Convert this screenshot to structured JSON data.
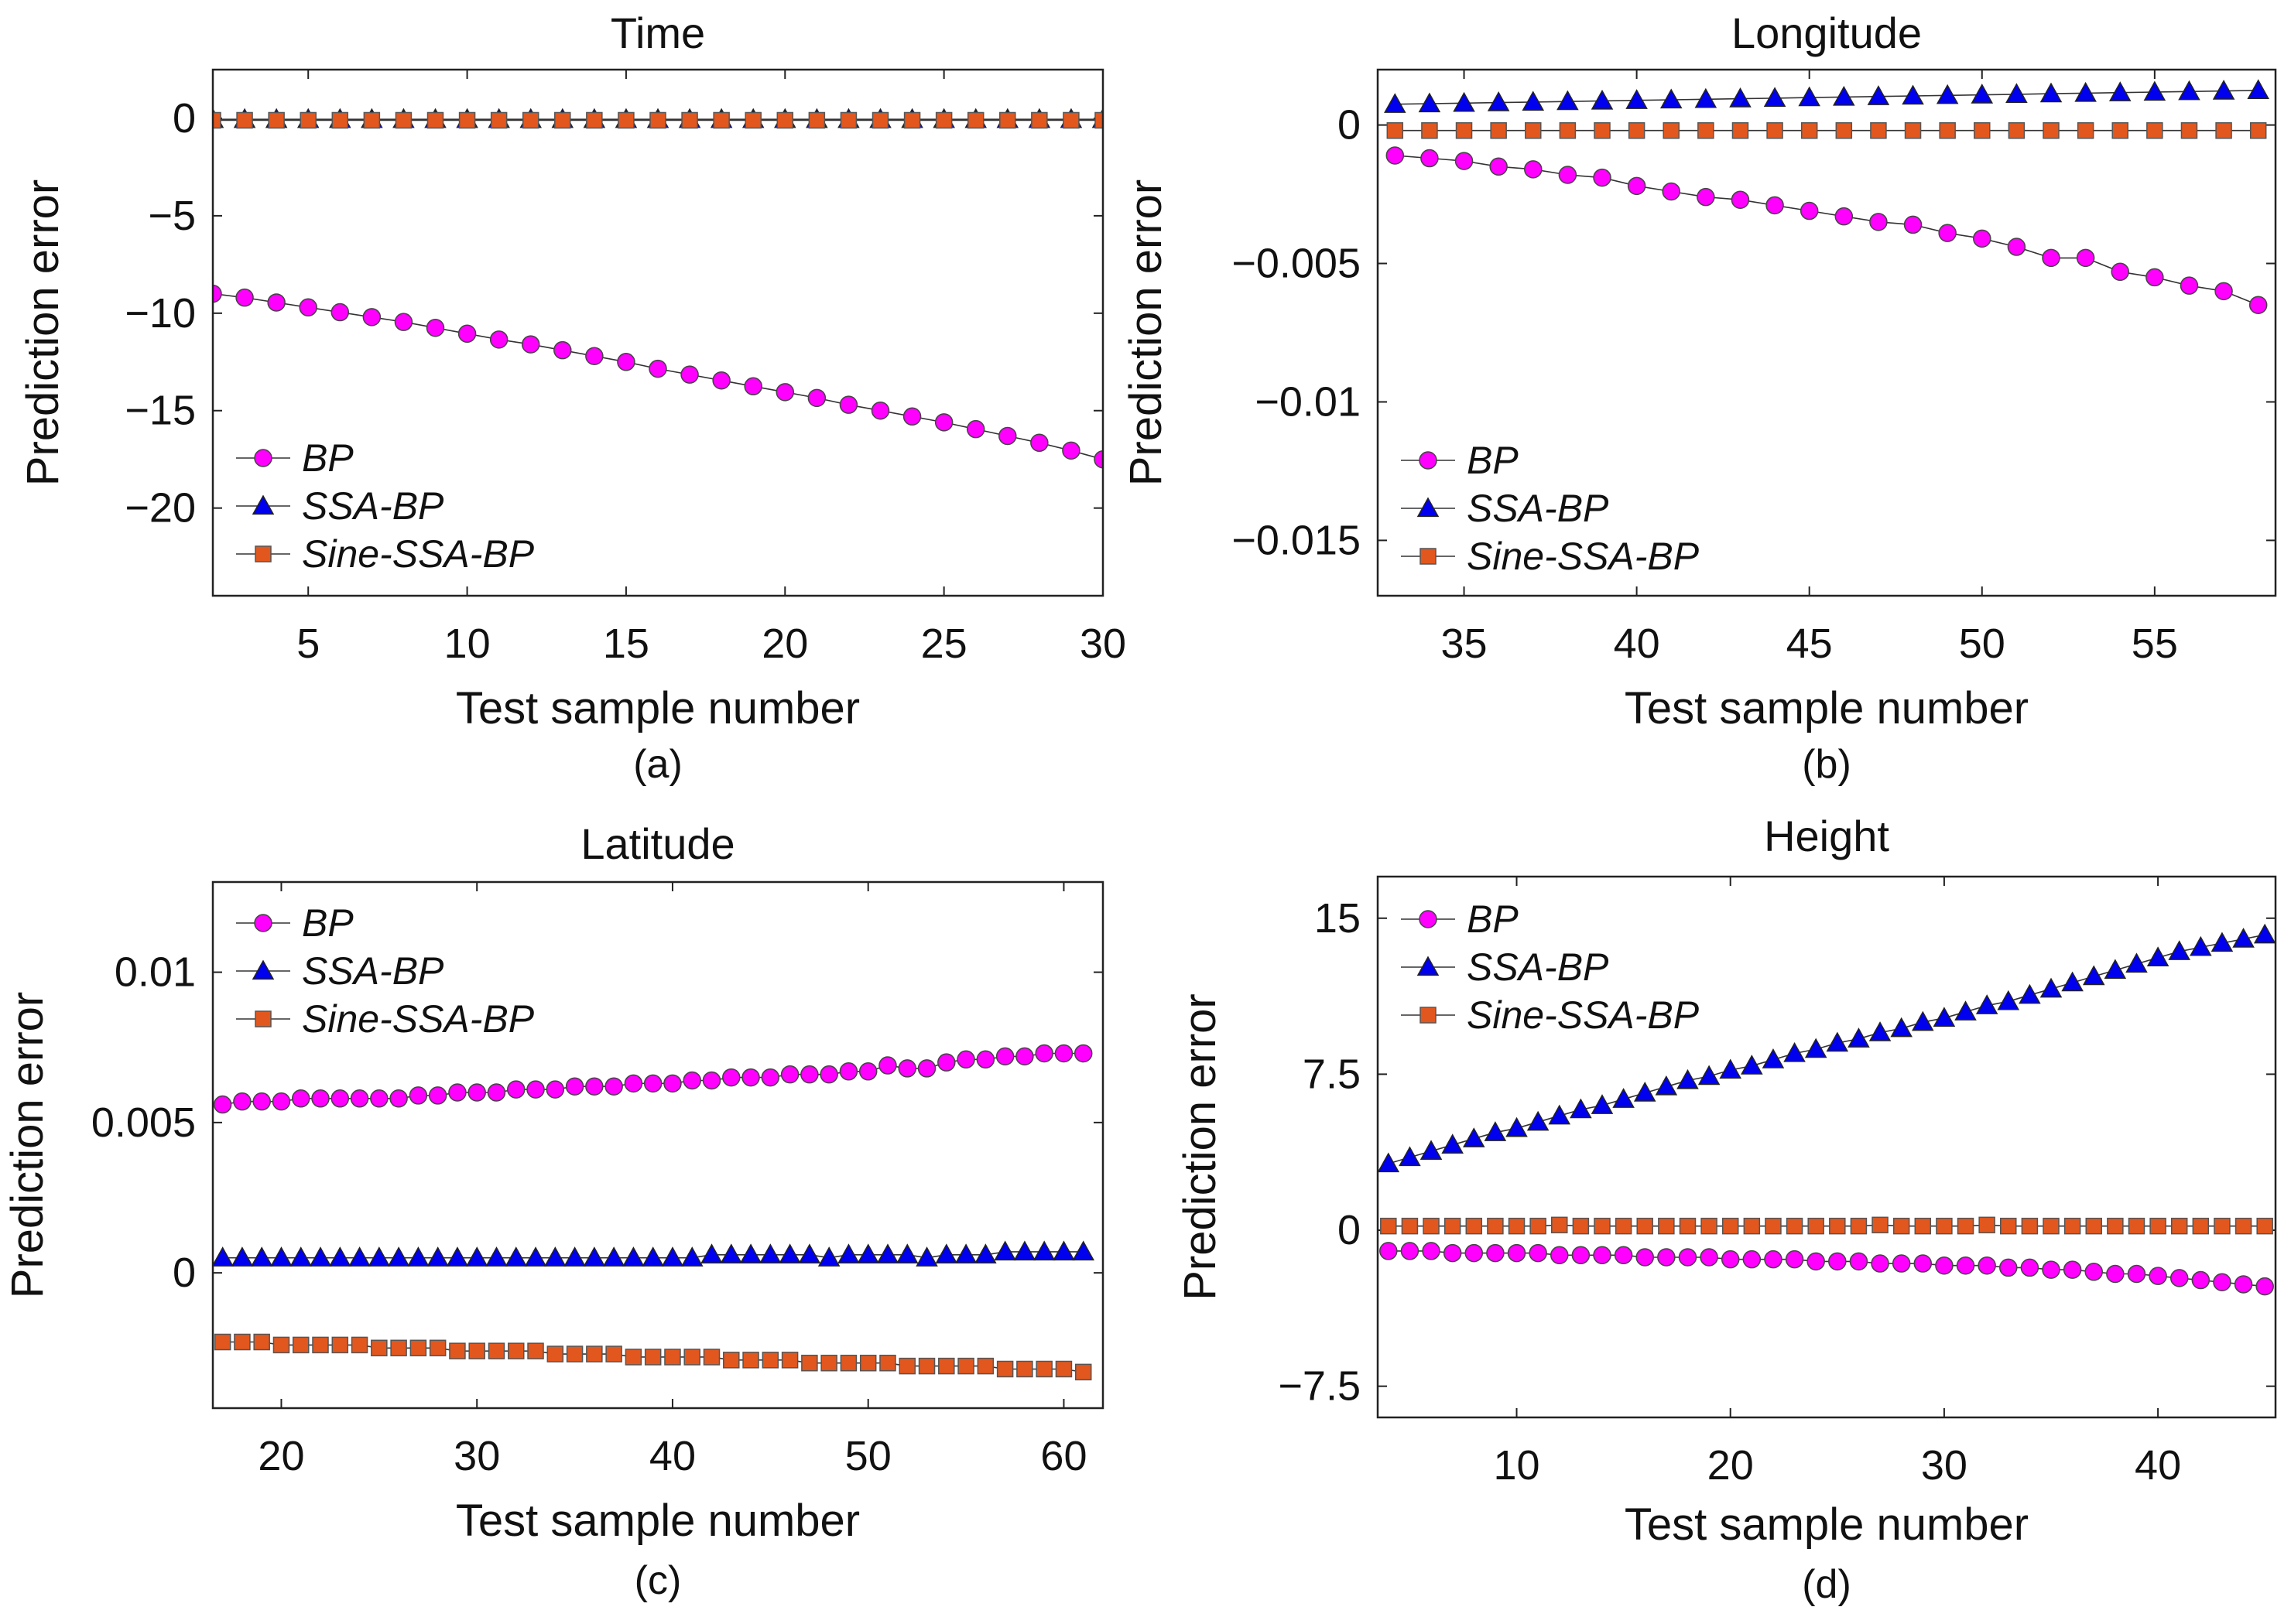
{
  "figure": {
    "panels": [
      {
        "id": "a",
        "caption": "(a)",
        "chart_data": {
          "type": "line",
          "title": "Time",
          "xlabel": "Test sample number",
          "ylabel": "Prediction error",
          "xlim": [
            2,
            30
          ],
          "ylim": [
            -24.5,
            2.5
          ],
          "xticks": [
            5,
            10,
            15,
            20,
            25,
            30
          ],
          "xtick_labels": [
            "5",
            "10",
            "15",
            "20",
            "25",
            "30"
          ],
          "yticks": [
            0,
            -5,
            -10,
            -15,
            -20
          ],
          "ytick_labels": [
            "0",
            "−5",
            "−10",
            "−15",
            "−20"
          ],
          "legend_position": "bottom-left",
          "x": [
            2,
            3,
            4,
            5,
            6,
            7,
            8,
            9,
            10,
            11,
            12,
            13,
            14,
            15,
            16,
            17,
            18,
            19,
            20,
            21,
            22,
            23,
            24,
            25,
            26,
            27,
            28,
            29,
            30
          ],
          "series": [
            {
              "name": "BP",
              "marker": "circle",
              "color": "#ff00ff",
              "values": [
                -9.0,
                -9.2,
                -9.45,
                -9.7,
                -9.95,
                -10.2,
                -10.45,
                -10.75,
                -11.05,
                -11.35,
                -11.6,
                -11.9,
                -12.2,
                -12.5,
                -12.85,
                -13.15,
                -13.45,
                -13.75,
                -14.05,
                -14.35,
                -14.7,
                -15.0,
                -15.3,
                -15.6,
                -15.95,
                -16.3,
                -16.65,
                -17.05,
                -17.5
              ]
            },
            {
              "name": "SSA-BP",
              "marker": "triangle",
              "color": "#0000ee",
              "values": [
                -0.05,
                -0.05,
                -0.05,
                -0.05,
                -0.05,
                -0.05,
                -0.05,
                -0.05,
                -0.05,
                -0.05,
                -0.05,
                -0.05,
                -0.05,
                -0.05,
                -0.05,
                -0.05,
                -0.05,
                -0.05,
                -0.05,
                -0.05,
                -0.05,
                -0.05,
                -0.05,
                -0.05,
                -0.05,
                -0.05,
                -0.05,
                -0.05,
                -0.05
              ]
            },
            {
              "name": "Sine-SSA-BP",
              "marker": "square",
              "color": "#e2571e",
              "values": [
                -0.1,
                -0.1,
                -0.1,
                -0.1,
                -0.1,
                -0.1,
                -0.1,
                -0.1,
                -0.1,
                -0.1,
                -0.1,
                -0.1,
                -0.1,
                -0.1,
                -0.1,
                -0.1,
                -0.1,
                -0.1,
                -0.1,
                -0.1,
                -0.1,
                -0.1,
                -0.1,
                -0.1,
                -0.1,
                -0.1,
                -0.1,
                -0.1,
                -0.1
              ]
            }
          ]
        }
      },
      {
        "id": "b",
        "caption": "(b)",
        "chart_data": {
          "type": "line",
          "title": "Longitude",
          "xlabel": "Test sample number",
          "ylabel": "Prediction error",
          "xlim": [
            32.5,
            58.5
          ],
          "ylim": [
            -0.017,
            0.002
          ],
          "xticks": [
            35,
            40,
            45,
            50,
            55
          ],
          "xtick_labels": [
            "35",
            "40",
            "45",
            "50",
            "55"
          ],
          "yticks": [
            0,
            -0.005,
            -0.01,
            -0.015
          ],
          "ytick_labels": [
            "0",
            "−0.005",
            "−0.01",
            "−0.015"
          ],
          "legend_position": "bottom-left",
          "x": [
            33,
            34,
            35,
            36,
            37,
            38,
            39,
            40,
            41,
            42,
            43,
            44,
            45,
            46,
            47,
            48,
            49,
            50,
            51,
            52,
            53,
            54,
            55,
            56,
            57,
            58
          ],
          "series": [
            {
              "name": "BP",
              "marker": "circle",
              "color": "#ff00ff",
              "values": [
                -0.0011,
                -0.0012,
                -0.0013,
                -0.0015,
                -0.0016,
                -0.0018,
                -0.0019,
                -0.0022,
                -0.0024,
                -0.0026,
                -0.0027,
                -0.0029,
                -0.0031,
                -0.0033,
                -0.0035,
                -0.0036,
                -0.0039,
                -0.0041,
                -0.0044,
                -0.0048,
                -0.0048,
                -0.0053,
                -0.0055,
                -0.0058,
                -0.006,
                -0.0065
              ]
            },
            {
              "name": "SSA-BP",
              "marker": "triangle",
              "color": "#0000ee",
              "values": [
                0.00075,
                0.00077,
                0.00079,
                0.00081,
                0.00083,
                0.00085,
                0.00087,
                0.00089,
                0.00091,
                0.00093,
                0.00095,
                0.00097,
                0.00099,
                0.00101,
                0.00103,
                0.00105,
                0.00107,
                0.00109,
                0.00111,
                0.00113,
                0.00115,
                0.00117,
                0.00119,
                0.00121,
                0.00123,
                0.00125
              ]
            },
            {
              "name": "Sine-SSA-BP",
              "marker": "square",
              "color": "#e2571e",
              "values": [
                -0.0002,
                -0.0002,
                -0.0002,
                -0.0002,
                -0.0002,
                -0.0002,
                -0.0002,
                -0.0002,
                -0.0002,
                -0.0002,
                -0.0002,
                -0.0002,
                -0.0002,
                -0.0002,
                -0.0002,
                -0.0002,
                -0.0002,
                -0.0002,
                -0.0002,
                -0.0002,
                -0.0002,
                -0.0002,
                -0.0002,
                -0.0002,
                -0.0002,
                -0.0002
              ]
            }
          ]
        }
      },
      {
        "id": "c",
        "caption": "(c)",
        "chart_data": {
          "type": "line",
          "title": "Latitude",
          "xlabel": "Test sample number",
          "ylabel": "Prediction error",
          "xlim": [
            16.5,
            62
          ],
          "ylim": [
            -0.0045,
            0.013
          ],
          "xticks": [
            20,
            30,
            40,
            50,
            60
          ],
          "xtick_labels": [
            "20",
            "30",
            "40",
            "50",
            "60"
          ],
          "yticks": [
            0.01,
            0.005,
            0
          ],
          "ytick_labels": [
            "0.01",
            "0.005",
            "0"
          ],
          "legend_position": "top-left",
          "x": [
            17,
            18,
            19,
            20,
            21,
            22,
            23,
            24,
            25,
            26,
            27,
            28,
            29,
            30,
            31,
            32,
            33,
            34,
            35,
            36,
            37,
            38,
            39,
            40,
            41,
            42,
            43,
            44,
            45,
            46,
            47,
            48,
            49,
            50,
            51,
            52,
            53,
            54,
            55,
            56,
            57,
            58,
            59,
            60,
            61
          ],
          "series": [
            {
              "name": "BP",
              "marker": "circle",
              "color": "#ff00ff",
              "values": [
                0.0056,
                0.0057,
                0.0057,
                0.0057,
                0.0058,
                0.0058,
                0.0058,
                0.0058,
                0.0058,
                0.0058,
                0.0059,
                0.0059,
                0.006,
                0.006,
                0.006,
                0.0061,
                0.0061,
                0.0061,
                0.0062,
                0.0062,
                0.0062,
                0.0063,
                0.0063,
                0.0063,
                0.0064,
                0.0064,
                0.0065,
                0.0065,
                0.0065,
                0.0066,
                0.0066,
                0.0066,
                0.0067,
                0.0067,
                0.0069,
                0.0068,
                0.0068,
                0.007,
                0.0071,
                0.0071,
                0.0072,
                0.0072,
                0.0073,
                0.0073,
                0.0073
              ]
            },
            {
              "name": "SSA-BP",
              "marker": "triangle",
              "color": "#0000ee",
              "values": [
                0.0005,
                0.0005,
                0.0005,
                0.0005,
                0.0005,
                0.0005,
                0.0005,
                0.0005,
                0.0005,
                0.0005,
                0.0005,
                0.0005,
                0.0005,
                0.0005,
                0.0005,
                0.0005,
                0.0005,
                0.0005,
                0.0005,
                0.0005,
                0.0005,
                0.0005,
                0.0005,
                0.0005,
                0.0005,
                0.0006,
                0.0006,
                0.0006,
                0.0006,
                0.0006,
                0.0006,
                0.0005,
                0.0006,
                0.0006,
                0.0006,
                0.0006,
                0.0005,
                0.0006,
                0.0006,
                0.0006,
                0.0007,
                0.0007,
                0.0007,
                0.0007,
                0.0007
              ]
            },
            {
              "name": "Sine-SSA-BP",
              "marker": "square",
              "color": "#e2571e",
              "values": [
                -0.0023,
                -0.0023,
                -0.0023,
                -0.0024,
                -0.0024,
                -0.0024,
                -0.0024,
                -0.0024,
                -0.0025,
                -0.0025,
                -0.0025,
                -0.0025,
                -0.0026,
                -0.0026,
                -0.0026,
                -0.0026,
                -0.0026,
                -0.0027,
                -0.0027,
                -0.0027,
                -0.0027,
                -0.0028,
                -0.0028,
                -0.0028,
                -0.0028,
                -0.0028,
                -0.0029,
                -0.0029,
                -0.0029,
                -0.0029,
                -0.003,
                -0.003,
                -0.003,
                -0.003,
                -0.003,
                -0.0031,
                -0.0031,
                -0.0031,
                -0.0031,
                -0.0031,
                -0.0032,
                -0.0032,
                -0.0032,
                -0.0032,
                -0.0033
              ]
            }
          ]
        }
      },
      {
        "id": "d",
        "caption": "(d)",
        "chart_data": {
          "type": "line",
          "title": "Height",
          "xlabel": "Test sample number",
          "ylabel": "Prediction error",
          "xlim": [
            3.5,
            45.5
          ],
          "ylim": [
            -9,
            17
          ],
          "xticks": [
            10,
            20,
            30,
            40
          ],
          "xtick_labels": [
            "10",
            "20",
            "30",
            "40"
          ],
          "yticks": [
            15,
            7.5,
            0,
            -7.5
          ],
          "ytick_labels": [
            "15",
            "7.5",
            "0",
            "−7.5"
          ],
          "legend_position": "top-left",
          "x": [
            4,
            5,
            6,
            7,
            8,
            9,
            10,
            11,
            12,
            13,
            14,
            15,
            16,
            17,
            18,
            19,
            20,
            21,
            22,
            23,
            24,
            25,
            26,
            27,
            28,
            29,
            30,
            31,
            32,
            33,
            34,
            35,
            36,
            37,
            38,
            39,
            40,
            41,
            42,
            43,
            44,
            45
          ],
          "series": [
            {
              "name": "BP",
              "marker": "circle",
              "color": "#ff00ff",
              "values": [
                -1.0,
                -1.0,
                -1.0,
                -1.1,
                -1.1,
                -1.1,
                -1.1,
                -1.1,
                -1.2,
                -1.2,
                -1.2,
                -1.2,
                -1.3,
                -1.3,
                -1.3,
                -1.3,
                -1.4,
                -1.4,
                -1.4,
                -1.4,
                -1.5,
                -1.5,
                -1.5,
                -1.6,
                -1.6,
                -1.6,
                -1.7,
                -1.7,
                -1.7,
                -1.8,
                -1.8,
                -1.9,
                -1.9,
                -2.0,
                -2.1,
                -2.1,
                -2.2,
                -2.3,
                -2.4,
                -2.5,
                -2.6,
                -2.7
              ]
            },
            {
              "name": "SSA-BP",
              "marker": "triangle",
              "color": "#0000ee",
              "values": [
                3.2,
                3.5,
                3.8,
                4.1,
                4.4,
                4.7,
                4.9,
                5.2,
                5.5,
                5.8,
                6.0,
                6.3,
                6.6,
                6.9,
                7.2,
                7.4,
                7.7,
                7.9,
                8.2,
                8.5,
                8.7,
                9.0,
                9.2,
                9.5,
                9.7,
                10.0,
                10.2,
                10.5,
                10.8,
                11.0,
                11.3,
                11.6,
                11.9,
                12.2,
                12.5,
                12.8,
                13.1,
                13.4,
                13.6,
                13.8,
                14.0,
                14.2
              ]
            },
            {
              "name": "Sine-SSA-BP",
              "marker": "square",
              "color": "#e2571e",
              "values": [
                0.2,
                0.2,
                0.2,
                0.2,
                0.2,
                0.2,
                0.2,
                0.2,
                0.25,
                0.2,
                0.2,
                0.2,
                0.2,
                0.2,
                0.2,
                0.2,
                0.2,
                0.2,
                0.2,
                0.2,
                0.2,
                0.2,
                0.2,
                0.25,
                0.2,
                0.2,
                0.2,
                0.2,
                0.25,
                0.2,
                0.2,
                0.2,
                0.2,
                0.2,
                0.2,
                0.2,
                0.2,
                0.2,
                0.2,
                0.2,
                0.2,
                0.2
              ]
            }
          ]
        }
      }
    ]
  }
}
